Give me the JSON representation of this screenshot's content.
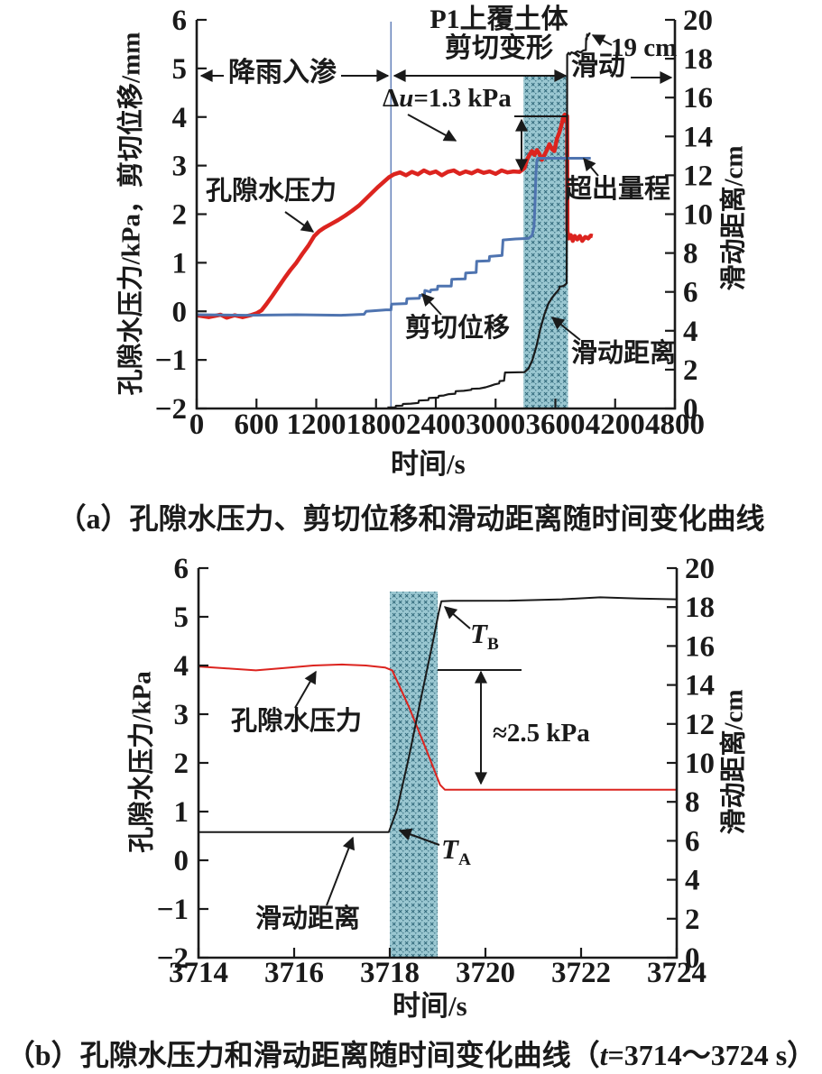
{
  "figure": {
    "panel_a": {
      "caption": "（a）孔隙水压力、剪切位移和滑动距离随时间变化曲线",
      "y_left_label": "孔隙水压力/kPa，剪切位移/mm",
      "y_right_label": "滑动距离/cm",
      "x_label": "时间/s",
      "ann": {
        "rain": "降雨入渗",
        "p1_line1": "P1上覆土体",
        "p1_line2": "剪切变形",
        "slide": "滑动",
        "d19": "19 cm",
        "du_d": "Δ",
        "du_var": "u",
        "du_rest": "=1.3 kPa",
        "pore": "孔隙水压力",
        "shear": "剪切位移",
        "slide_dist": "滑动距离",
        "over_range": "超出量程"
      }
    },
    "panel_b": {
      "caption_pre": "（b）孔隙水压力和滑动距离随时间变化曲线（",
      "caption_var": "t",
      "caption_post": "=3714～3724 s）",
      "y_left_label": "孔隙水压力/kPa",
      "y_right_label": "滑动距离/cm",
      "x_label": "时间/s",
      "ann": {
        "tb_base": "T",
        "tb_sub": "B",
        "ta_base": "T",
        "ta_sub": "A",
        "approx": "≈2.5 kPa",
        "pore": "孔隙水压力",
        "slide_dist": "滑动距离"
      }
    },
    "colors": {
      "pore_red": "#dc241f",
      "shear_blue": "#4f74b0",
      "slide_black": "#1a1a1a",
      "vline_blue": "#6b86bd",
      "hatch_bg": "#9ac7d1",
      "hatch_mark": "#2d6577"
    }
  },
  "chart_data": [
    {
      "type": "line",
      "panel": "a",
      "xlabel": "时间/s",
      "ylabel_left": "孔隙水压力/kPa，剪切位移/mm",
      "ylabel_right": "滑动距离/cm",
      "xlim": [
        0,
        4800
      ],
      "ylim_left": [
        -2,
        6
      ],
      "ylim_right": [
        0,
        20
      ],
      "x_ticks": {
        "values": [
          0,
          600,
          1200,
          1800,
          2400,
          3000,
          3600,
          4200,
          4800
        ],
        "labels": [
          "0",
          "600",
          "1200",
          "1800",
          "2400",
          "3000",
          "3600",
          "4200",
          "4800"
        ]
      },
      "y_left_ticks": {
        "values": [
          -2,
          -1,
          0,
          1,
          2,
          3,
          4,
          5,
          6
        ],
        "labels": [
          "−2",
          "−1",
          "0",
          "1",
          "2",
          "3",
          "4",
          "5",
          "6"
        ]
      },
      "y_right_ticks": {
        "values": [
          0,
          2,
          4,
          6,
          8,
          10,
          12,
          14,
          16,
          18,
          20
        ],
        "labels": [
          "0",
          "2",
          "4",
          "6",
          "8",
          "10",
          "12",
          "14",
          "16",
          "18",
          "20"
        ]
      },
      "vline_t": 1950,
      "shaded_region": {
        "t_start": 3280,
        "t_end": 3727
      },
      "series": [
        {
          "name": "pore-pressure-a",
          "axis": "left",
          "color": "#dc241f",
          "width": 4.5,
          "points": [
            [
              0,
              -0.08
            ],
            [
              120,
              -0.12
            ],
            [
              240,
              -0.07
            ],
            [
              300,
              -0.13
            ],
            [
              380,
              -0.08
            ],
            [
              460,
              -0.12
            ],
            [
              540,
              -0.08
            ],
            [
              600,
              -0.04
            ],
            [
              650,
              0.02
            ],
            [
              700,
              0.15
            ],
            [
              760,
              0.32
            ],
            [
              820,
              0.5
            ],
            [
              880,
              0.68
            ],
            [
              940,
              0.85
            ],
            [
              1000,
              1.0
            ],
            [
              1060,
              1.18
            ],
            [
              1120,
              1.35
            ],
            [
              1180,
              1.55
            ],
            [
              1230,
              1.65
            ],
            [
              1280,
              1.72
            ],
            [
              1350,
              1.8
            ],
            [
              1420,
              1.88
            ],
            [
              1490,
              1.97
            ],
            [
              1560,
              2.07
            ],
            [
              1630,
              2.18
            ],
            [
              1700,
              2.32
            ],
            [
              1760,
              2.44
            ],
            [
              1820,
              2.56
            ],
            [
              1880,
              2.67
            ],
            [
              1930,
              2.76
            ],
            [
              1980,
              2.82
            ],
            [
              2040,
              2.86
            ],
            [
              2100,
              2.8
            ],
            [
              2160,
              2.87
            ],
            [
              2220,
              2.82
            ],
            [
              2280,
              2.9
            ],
            [
              2340,
              2.84
            ],
            [
              2400,
              2.88
            ],
            [
              2460,
              2.8
            ],
            [
              2520,
              2.87
            ],
            [
              2580,
              2.9
            ],
            [
              2640,
              2.83
            ],
            [
              2700,
              2.88
            ],
            [
              2760,
              2.84
            ],
            [
              2820,
              2.9
            ],
            [
              2880,
              2.85
            ],
            [
              2940,
              2.88
            ],
            [
              3000,
              2.83
            ],
            [
              3060,
              2.9
            ],
            [
              3120,
              2.86
            ],
            [
              3180,
              2.88
            ],
            [
              3240,
              2.87
            ],
            [
              3290,
              2.95
            ],
            [
              3315,
              3.12
            ],
            [
              3340,
              3.22
            ],
            [
              3365,
              3.3
            ],
            [
              3390,
              3.22
            ],
            [
              3415,
              3.32
            ],
            [
              3440,
              3.24
            ],
            [
              3465,
              3.12
            ],
            [
              3490,
              3.22
            ],
            [
              3515,
              3.32
            ],
            [
              3540,
              3.44
            ],
            [
              3565,
              3.34
            ],
            [
              3590,
              3.3
            ],
            [
              3615,
              3.55
            ],
            [
              3640,
              3.68
            ],
            [
              3660,
              3.82
            ],
            [
              3680,
              4.0
            ],
            [
              3695,
              4.05
            ],
            [
              3705,
              3.92
            ],
            [
              3712,
              4.0
            ],
            [
              3718,
              4.02
            ],
            [
              3721,
              1.65
            ],
            [
              3735,
              1.5
            ],
            [
              3755,
              1.57
            ],
            [
              3775,
              1.45
            ],
            [
              3795,
              1.55
            ],
            [
              3820,
              1.48
            ],
            [
              3845,
              1.55
            ],
            [
              3870,
              1.45
            ],
            [
              3900,
              1.53
            ],
            [
              3930,
              1.5
            ],
            [
              3955,
              1.56
            ],
            [
              3975,
              1.55
            ]
          ]
        },
        {
          "name": "shear-displacement-a",
          "axis": "left",
          "color": "#4f74b0",
          "width": 3,
          "points": [
            [
              0,
              -0.07
            ],
            [
              500,
              -0.08
            ],
            [
              1000,
              -0.07
            ],
            [
              1450,
              -0.08
            ],
            [
              1680,
              -0.06
            ],
            [
              1700,
              0.0
            ],
            [
              1900,
              0.03
            ],
            [
              1950,
              0.03
            ],
            [
              1955,
              0.15
            ],
            [
              2105,
              0.16
            ],
            [
              2110,
              0.26
            ],
            [
              2235,
              0.27
            ],
            [
              2240,
              0.33
            ],
            [
              2285,
              0.33
            ],
            [
              2290,
              0.43
            ],
            [
              2345,
              0.4
            ],
            [
              2350,
              0.44
            ],
            [
              2415,
              0.45
            ],
            [
              2420,
              0.52
            ],
            [
              2555,
              0.52
            ],
            [
              2560,
              0.66
            ],
            [
              2695,
              0.67
            ],
            [
              2700,
              0.79
            ],
            [
              2805,
              0.8
            ],
            [
              2810,
              1.03
            ],
            [
              2935,
              1.04
            ],
            [
              2940,
              1.13
            ],
            [
              3065,
              1.15
            ],
            [
              3075,
              1.47
            ],
            [
              3200,
              1.49
            ],
            [
              3330,
              1.5
            ],
            [
              3365,
              1.56
            ],
            [
              3385,
              1.73
            ],
            [
              3395,
              2.2
            ],
            [
              3405,
              2.85
            ],
            [
              3415,
              3.12
            ],
            [
              3425,
              3.15
            ],
            [
              3955,
              3.15
            ]
          ]
        },
        {
          "name": "slide-distance-a",
          "axis": "right",
          "color": "#1a1a1a",
          "width": 2.2,
          "points": [
            [
              1915,
              0.05
            ],
            [
              1995,
              0.06
            ],
            [
              2000,
              0.14
            ],
            [
              2065,
              0.15
            ],
            [
              2070,
              0.23
            ],
            [
              2150,
              0.25
            ],
            [
              2225,
              0.29
            ],
            [
              2230,
              0.41
            ],
            [
              2325,
              0.43
            ],
            [
              2330,
              0.54
            ],
            [
              2425,
              0.56
            ],
            [
              2430,
              0.65
            ],
            [
              2480,
              0.67
            ],
            [
              2530,
              0.74
            ],
            [
              2595,
              0.76
            ],
            [
              2600,
              0.89
            ],
            [
              2680,
              0.91
            ],
            [
              2755,
              0.96
            ],
            [
              2760,
              1.01
            ],
            [
              2840,
              1.03
            ],
            [
              2900,
              1.09
            ],
            [
              2950,
              1.17
            ],
            [
              2990,
              1.24
            ],
            [
              3035,
              1.29
            ],
            [
              3040,
              1.41
            ],
            [
              3085,
              1.43
            ],
            [
              3095,
              1.85
            ],
            [
              3290,
              1.87
            ],
            [
              3330,
              2.05
            ],
            [
              3370,
              2.5
            ],
            [
              3410,
              3.2
            ],
            [
              3450,
              4.1
            ],
            [
              3490,
              4.85
            ],
            [
              3530,
              5.4
            ],
            [
              3570,
              5.72
            ],
            [
              3605,
              5.95
            ],
            [
              3620,
              6.03
            ],
            [
              3638,
              6.15
            ],
            [
              3642,
              6.27
            ],
            [
              3680,
              6.3
            ],
            [
              3700,
              6.37
            ],
            [
              3713,
              6.45
            ],
            [
              3717,
              11.5
            ],
            [
              3719,
              18.2
            ],
            [
              3732,
              18.3
            ],
            [
              3746,
              18.22
            ],
            [
              3762,
              18.33
            ],
            [
              3792,
              18.27
            ],
            [
              3822,
              18.38
            ],
            [
              3852,
              18.32
            ],
            [
              3880,
              18.42
            ],
            [
              3898,
              18.44
            ],
            [
              3906,
              18.44
            ],
            [
              3909,
              19.05
            ],
            [
              3916,
              19.0
            ],
            [
              3919,
              19.25
            ],
            [
              3931,
              19.18
            ],
            [
              3941,
              19.3
            ],
            [
              3952,
              19.3
            ]
          ]
        }
      ]
    },
    {
      "type": "line",
      "panel": "b",
      "xlabel": "时间/s",
      "ylabel_left": "孔隙水压力/kPa",
      "ylabel_right": "滑动距离/cm",
      "xlim": [
        3714,
        3724
      ],
      "ylim_left": [
        -2,
        6
      ],
      "ylim_right": [
        0,
        20
      ],
      "x_ticks": {
        "values": [
          3714,
          3716,
          3718,
          3720,
          3722,
          3724
        ],
        "labels": [
          "3714",
          "3716",
          "3718",
          "3720",
          "3722",
          "3724"
        ]
      },
      "y_left_ticks": {
        "values": [
          -2,
          -1,
          0,
          1,
          2,
          3,
          4,
          5,
          6
        ],
        "labels": [
          "−2",
          "−1",
          "0",
          "1",
          "2",
          "3",
          "4",
          "5",
          "6"
        ]
      },
      "y_right_ticks": {
        "values": [
          0,
          2,
          4,
          6,
          8,
          10,
          12,
          14,
          16,
          18,
          20
        ],
        "labels": [
          "0",
          "2",
          "4",
          "6",
          "8",
          "10",
          "12",
          "14",
          "16",
          "18",
          "20"
        ]
      },
      "shaded_region": {
        "t_start": 3718,
        "t_end": 3719
      },
      "series": [
        {
          "name": "pore-pressure-b",
          "axis": "left",
          "color": "#dc241f",
          "width": 2,
          "points": [
            [
              3714,
              3.98
            ],
            [
              3714.6,
              3.94
            ],
            [
              3715.2,
              3.9
            ],
            [
              3715.8,
              3.95
            ],
            [
              3716.4,
              4.0
            ],
            [
              3717.0,
              4.02
            ],
            [
              3717.5,
              4.0
            ],
            [
              3717.9,
              3.96
            ],
            [
              3718.05,
              3.9
            ],
            [
              3718.4,
              3.15
            ],
            [
              3718.75,
              2.3
            ],
            [
              3719.05,
              1.55
            ],
            [
              3719.15,
              1.45
            ],
            [
              3720,
              1.45
            ],
            [
              3721.5,
              1.45
            ],
            [
              3723,
              1.45
            ],
            [
              3724,
              1.45
            ]
          ]
        },
        {
          "name": "slide-distance-b",
          "axis": "right",
          "color": "#1a1a1a",
          "width": 2,
          "points": [
            [
              3714,
              6.45
            ],
            [
              3715,
              6.45
            ],
            [
              3716,
              6.45
            ],
            [
              3717,
              6.45
            ],
            [
              3717.98,
              6.45
            ],
            [
              3718.15,
              7.6
            ],
            [
              3718.4,
              10.3
            ],
            [
              3718.65,
              13.3
            ],
            [
              3718.9,
              16.2
            ],
            [
              3719.02,
              17.7
            ],
            [
              3719.08,
              18.3
            ],
            [
              3719.3,
              18.32
            ],
            [
              3720.5,
              18.33
            ],
            [
              3721.6,
              18.4
            ],
            [
              3722.4,
              18.5
            ],
            [
              3723.2,
              18.44
            ],
            [
              3724,
              18.4
            ]
          ]
        }
      ]
    }
  ]
}
